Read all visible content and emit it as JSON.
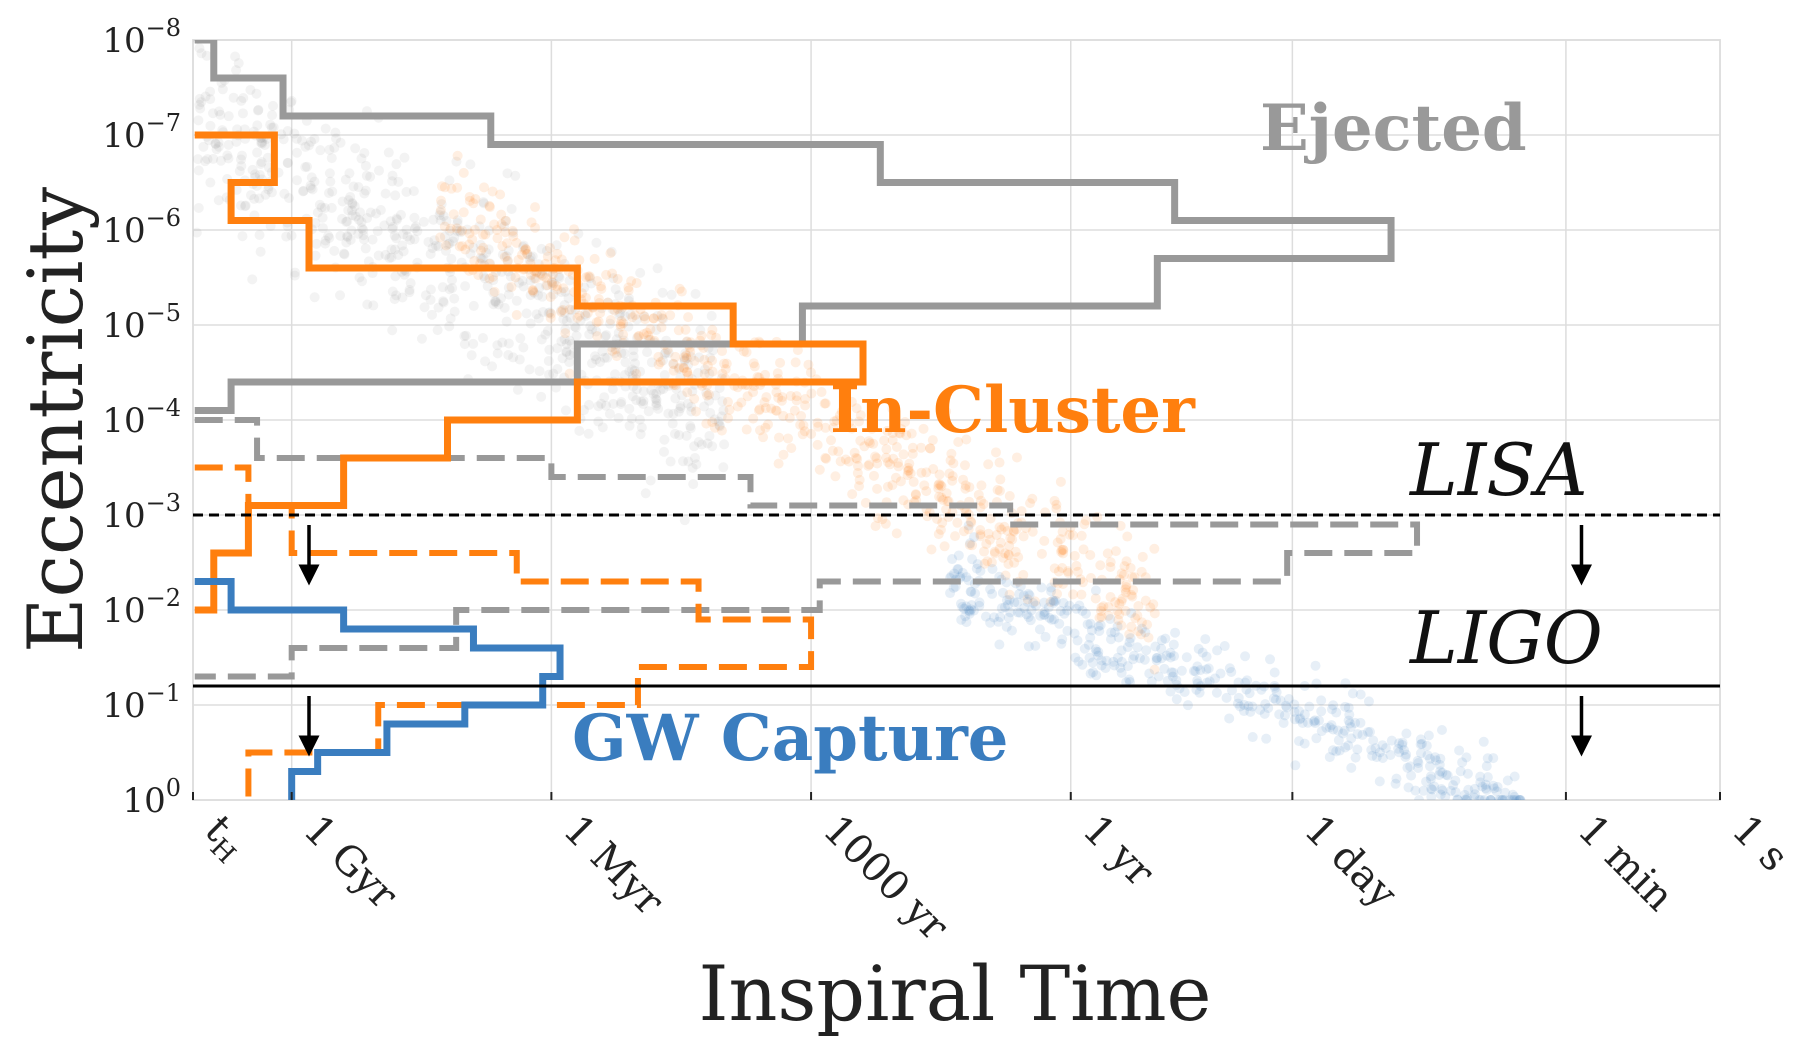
{
  "chart_data": {
    "type": "scatter",
    "xlabel": "Inspiral Time",
    "ylabel": "Eccentricity",
    "x_scale": "log-time (decreasing to the right)",
    "y_scale": "log (10^-8 at top, 10^0 at bottom)",
    "ylim": [
      "10^-8",
      "10^0"
    ],
    "grid": true,
    "x_ticks": [
      {
        "label": "t_H",
        "main": "t",
        "sub": "H",
        "log10_seconds": 17.64
      },
      {
        "label": "1 Gyr",
        "log10_seconds": 16.5
      },
      {
        "label": "1 Myr",
        "log10_seconds": 13.5
      },
      {
        "label": "1000 yr",
        "log10_seconds": 10.5
      },
      {
        "label": "1 yr",
        "log10_seconds": 7.5
      },
      {
        "label": "1 day",
        "log10_seconds": 4.94
      },
      {
        "label": "1 min",
        "log10_seconds": 1.78
      },
      {
        "label": "1 s",
        "log10_seconds": 0
      }
    ],
    "y_ticks": [
      {
        "label": "10^-8",
        "base": "10",
        "exp": "−8",
        "log10": -8
      },
      {
        "label": "10^-7",
        "base": "10",
        "exp": "−7",
        "log10": -7
      },
      {
        "label": "10^-6",
        "base": "10",
        "exp": "−6",
        "log10": -6
      },
      {
        "label": "10^-5",
        "base": "10",
        "exp": "−5",
        "log10": -5
      },
      {
        "label": "10^-4",
        "base": "10",
        "exp": "−4",
        "log10": -4
      },
      {
        "label": "10^-3",
        "base": "10",
        "exp": "−3",
        "log10": -3
      },
      {
        "label": "10^-2",
        "base": "10",
        "exp": "−2",
        "log10": -2
      },
      {
        "label": "10^-1",
        "base": "10",
        "exp": "−1",
        "log10": -1
      },
      {
        "label": "10^0",
        "base": "10",
        "exp": "0",
        "log10": 0
      }
    ],
    "series": [
      {
        "name": "Ejected",
        "color": "#999999",
        "scatter_trend": {
          "x_log10_seconds": [
            17.6,
            11.5
          ],
          "y_log10": [
            -7.2,
            -4.0
          ],
          "spread": 0.45
        },
        "hist_solid_outline": [
          [
            17.62,
            -8.0
          ],
          [
            17.4,
            -8.0
          ],
          [
            17.4,
            -7.6
          ],
          [
            16.6,
            -7.6
          ],
          [
            16.6,
            -7.2
          ],
          [
            14.2,
            -7.2
          ],
          [
            14.2,
            -6.9
          ],
          [
            9.7,
            -6.9
          ],
          [
            9.7,
            -6.5
          ],
          [
            6.3,
            -6.5
          ],
          [
            6.3,
            -6.1
          ],
          [
            3.8,
            -6.1
          ],
          [
            3.8,
            -5.7
          ],
          [
            6.5,
            -5.7
          ],
          [
            6.5,
            -5.2
          ],
          [
            10.6,
            -5.2
          ],
          [
            10.6,
            -4.8
          ],
          [
            13.2,
            -4.8
          ],
          [
            13.2,
            -4.4
          ],
          [
            17.2,
            -4.4
          ],
          [
            17.2,
            -4.1
          ],
          [
            17.62,
            -4.1
          ]
        ],
        "hist_dashed_outline": [
          [
            17.62,
            -4.0
          ],
          [
            16.9,
            -4.0
          ],
          [
            16.9,
            -3.6
          ],
          [
            13.5,
            -3.6
          ],
          [
            13.5,
            -3.4
          ],
          [
            11.2,
            -3.4
          ],
          [
            11.2,
            -3.1
          ],
          [
            8.2,
            -3.1
          ],
          [
            8.2,
            -2.9
          ],
          [
            3.5,
            -2.9
          ],
          [
            3.5,
            -2.6
          ],
          [
            5.0,
            -2.6
          ],
          [
            5.0,
            -2.3
          ],
          [
            10.4,
            -2.3
          ],
          [
            10.4,
            -2.0
          ],
          [
            14.6,
            -2.0
          ],
          [
            14.6,
            -1.6
          ],
          [
            16.5,
            -1.6
          ],
          [
            16.5,
            -1.3
          ],
          [
            17.62,
            -1.3
          ]
        ]
      },
      {
        "name": "In-Cluster",
        "color": "#ff7f0e",
        "scatter_trend": {
          "x_log10_seconds": [
            14.8,
            6.5
          ],
          "y_log10": [
            -6.2,
            -2.0
          ],
          "spread": 0.3
        },
        "hist_solid_outline": [
          [
            17.62,
            -7.0
          ],
          [
            16.7,
            -7.0
          ],
          [
            16.7,
            -6.5
          ],
          [
            17.2,
            -6.5
          ],
          [
            17.2,
            -6.1
          ],
          [
            16.3,
            -6.1
          ],
          [
            16.3,
            -5.6
          ],
          [
            13.2,
            -5.6
          ],
          [
            13.2,
            -5.2
          ],
          [
            11.4,
            -5.2
          ],
          [
            11.4,
            -4.8
          ],
          [
            9.9,
            -4.8
          ],
          [
            9.9,
            -4.4
          ],
          [
            13.2,
            -4.4
          ],
          [
            13.2,
            -4.0
          ],
          [
            14.7,
            -4.0
          ],
          [
            14.7,
            -3.6
          ],
          [
            15.9,
            -3.6
          ],
          [
            15.9,
            -3.1
          ],
          [
            17.0,
            -3.1
          ],
          [
            17.0,
            -2.6
          ],
          [
            17.4,
            -2.6
          ],
          [
            17.4,
            -2.0
          ],
          [
            17.62,
            -2.0
          ]
        ],
        "hist_dashed_outline": [
          [
            17.62,
            -3.5
          ],
          [
            17.0,
            -3.5
          ],
          [
            17.0,
            -3.1
          ],
          [
            16.5,
            -3.1
          ],
          [
            16.5,
            -2.6
          ],
          [
            13.9,
            -2.6
          ],
          [
            13.9,
            -2.3
          ],
          [
            11.8,
            -2.3
          ],
          [
            11.8,
            -1.9
          ],
          [
            10.5,
            -1.9
          ],
          [
            10.5,
            -1.4
          ],
          [
            12.5,
            -1.4
          ],
          [
            12.5,
            -1.0
          ],
          [
            15.5,
            -1.0
          ],
          [
            15.5,
            -0.5
          ],
          [
            17.0,
            -0.5
          ],
          [
            17.0,
            0.0
          ]
        ]
      },
      {
        "name": "GW Capture",
        "color": "#3a7dbf",
        "scatter_trend": {
          "x_log10_seconds": [
            8.9,
            2.3
          ],
          "y_log10": [
            -2.3,
            0.0
          ],
          "spread": 0.2
        },
        "hist_solid_outline": [
          [
            17.62,
            -2.3
          ],
          [
            17.2,
            -2.3
          ],
          [
            17.2,
            -2.0
          ],
          [
            15.9,
            -2.0
          ],
          [
            15.9,
            -1.8
          ],
          [
            14.4,
            -1.8
          ],
          [
            14.4,
            -1.6
          ],
          [
            13.4,
            -1.6
          ],
          [
            13.4,
            -1.3
          ],
          [
            13.6,
            -1.3
          ],
          [
            13.6,
            -1.0
          ],
          [
            14.5,
            -1.0
          ],
          [
            14.5,
            -0.8
          ],
          [
            15.4,
            -0.8
          ],
          [
            15.4,
            -0.5
          ],
          [
            16.2,
            -0.5
          ],
          [
            16.2,
            -0.3
          ],
          [
            16.5,
            -0.3
          ],
          [
            16.5,
            0.0
          ]
        ]
      }
    ],
    "thresholds": [
      {
        "name": "LISA",
        "log10_eccentricity": -3,
        "style": "dashed",
        "color": "#000000"
      },
      {
        "name": "LIGO",
        "log10_eccentricity": -1.2,
        "style": "solid",
        "color": "#000000"
      }
    ],
    "annotations": [
      {
        "text": "Ejected",
        "color": "#999999"
      },
      {
        "text": "In-Cluster",
        "color": "#ff7f0e"
      },
      {
        "text": "GW Capture",
        "color": "#3a7dbf"
      },
      {
        "text": "LISA"
      },
      {
        "text": "LIGO"
      }
    ]
  }
}
